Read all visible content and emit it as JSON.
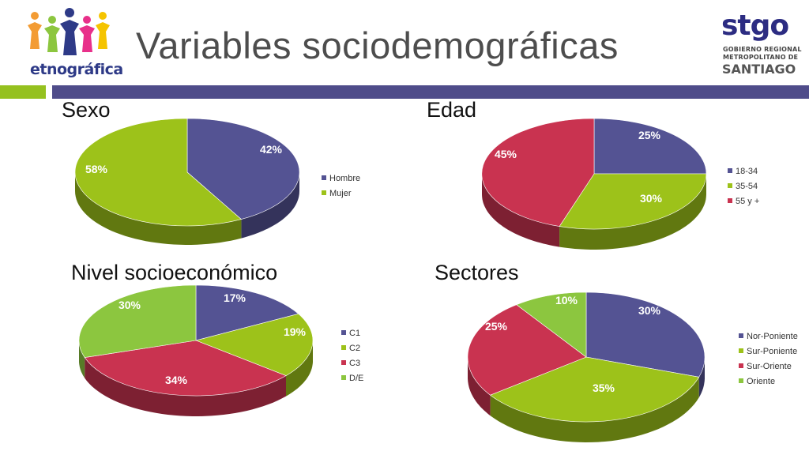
{
  "header": {
    "title": "Variables sociodemográficas",
    "logo_left_text": "etnográfica",
    "logo_right_text": "stgo",
    "logo_right_line1": "GOBIERNO REGIONAL",
    "logo_right_line2": "METROPOLITANO DE",
    "logo_right_line3": "SANTIAGO"
  },
  "colors": {
    "blue": "#545393",
    "green": "#9dc21a",
    "red": "#c93350",
    "lightgreen": "#8cc63f",
    "bar_green": "#95c11f",
    "bar_blue": "#4f4c8a"
  },
  "chart_data": [
    {
      "type": "pie",
      "title": "Sexo",
      "categories": [
        "Hombre",
        "Mujer"
      ],
      "values": [
        42,
        58
      ],
      "labels": [
        "42%",
        "58%"
      ],
      "colors": [
        "#545393",
        "#9dc21a"
      ],
      "legend": "right"
    },
    {
      "type": "pie",
      "title": "Edad",
      "categories": [
        "18-34",
        "35-54",
        "55 y +"
      ],
      "values": [
        25,
        30,
        45
      ],
      "labels": [
        "25%",
        "30%",
        "45%"
      ],
      "colors": [
        "#545393",
        "#9dc21a",
        "#c93350"
      ],
      "legend": "right"
    },
    {
      "type": "pie",
      "title": "Nivel socioeconómico",
      "categories": [
        "C1",
        "C2",
        "C3",
        "D/E"
      ],
      "values": [
        17,
        19,
        34,
        30
      ],
      "labels": [
        "17%",
        "19%",
        "34%",
        "30%"
      ],
      "colors": [
        "#545393",
        "#9dc21a",
        "#c93350",
        "#8cc63f"
      ],
      "legend": "right"
    },
    {
      "type": "pie",
      "title": "Sectores",
      "categories": [
        "Nor-Poniente",
        "Sur-Poniente",
        "Sur-Oriente",
        "Oriente"
      ],
      "values": [
        30,
        35,
        25,
        10
      ],
      "labels": [
        "30%",
        "35%",
        "25%",
        "10%"
      ],
      "colors": [
        "#545393",
        "#9dc21a",
        "#c93350",
        "#8cc63f"
      ],
      "legend": "right"
    }
  ]
}
